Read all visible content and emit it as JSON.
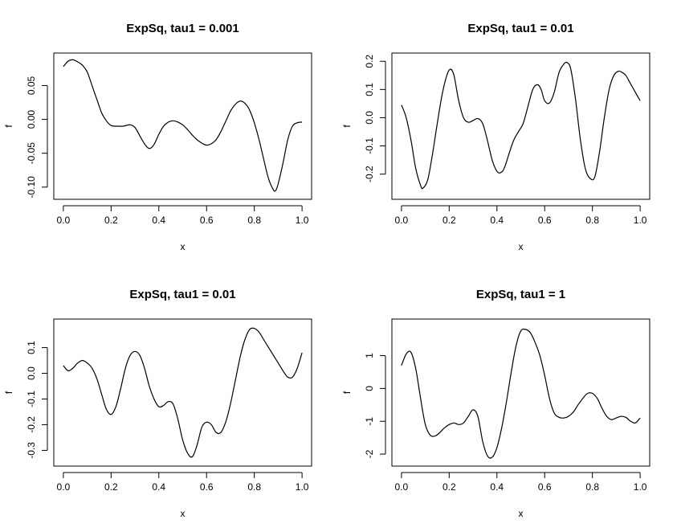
{
  "chart_data": [
    {
      "type": "line",
      "title": "ExpSq, tau1 = 0.001",
      "xlabel": "x",
      "ylabel": "f",
      "xlim": [
        0,
        1
      ],
      "ylim": [
        -0.11,
        0.09
      ],
      "xticks": [
        0,
        0.2,
        0.4,
        0.6,
        0.8,
        1
      ],
      "xtick_labels": [
        "0.0",
        "0.2",
        "0.4",
        "0.6",
        "0.8",
        "1.0"
      ],
      "yticks": [
        -0.1,
        -0.05,
        0,
        0.05
      ],
      "ytick_labels": [
        "-0.10",
        "-0.05",
        "0.00",
        "0.05"
      ],
      "series": [
        {
          "x": [
            0,
            0.02,
            0.04,
            0.06,
            0.08,
            0.1,
            0.12,
            0.14,
            0.16,
            0.18,
            0.2,
            0.22,
            0.25,
            0.28,
            0.3,
            0.32,
            0.34,
            0.36,
            0.38,
            0.4,
            0.42,
            0.44,
            0.46,
            0.48,
            0.5,
            0.52,
            0.54,
            0.56,
            0.58,
            0.6,
            0.62,
            0.64,
            0.66,
            0.68,
            0.7,
            0.72,
            0.74,
            0.76,
            0.78,
            0.8,
            0.82,
            0.84,
            0.86,
            0.88,
            0.89,
            0.9,
            0.92,
            0.94,
            0.96,
            0.98,
            1.0
          ],
          "y": [
            0.078,
            0.086,
            0.088,
            0.085,
            0.08,
            0.07,
            0.05,
            0.03,
            0.01,
            -0.002,
            -0.009,
            -0.01,
            -0.01,
            -0.008,
            -0.012,
            -0.024,
            -0.036,
            -0.043,
            -0.037,
            -0.022,
            -0.01,
            -0.004,
            -0.002,
            -0.004,
            -0.008,
            -0.015,
            -0.023,
            -0.03,
            -0.035,
            -0.038,
            -0.036,
            -0.03,
            -0.018,
            -0.003,
            0.012,
            0.022,
            0.027,
            0.024,
            0.014,
            -0.005,
            -0.03,
            -0.06,
            -0.088,
            -0.104,
            -0.105,
            -0.095,
            -0.065,
            -0.03,
            -0.01,
            -0.005,
            -0.004
          ]
        }
      ]
    },
    {
      "type": "line",
      "title": "ExpSq, tau1 = 0.01",
      "xlabel": "x",
      "ylabel": "f",
      "xlim": [
        0,
        1
      ],
      "ylim": [
        -0.27,
        0.21
      ],
      "xticks": [
        0,
        0.2,
        0.4,
        0.6,
        0.8,
        1
      ],
      "xtick_labels": [
        "0.0",
        "0.2",
        "0.4",
        "0.6",
        "0.8",
        "1.0"
      ],
      "yticks": [
        -0.2,
        -0.1,
        0,
        0.1,
        0.2
      ],
      "ytick_labels": [
        "-0.2",
        "-0.1",
        "0.0",
        "0.1",
        "0.2"
      ],
      "series": [
        {
          "x": [
            0,
            0.02,
            0.04,
            0.06,
            0.08,
            0.09,
            0.11,
            0.13,
            0.15,
            0.17,
            0.19,
            0.205,
            0.22,
            0.24,
            0.26,
            0.28,
            0.3,
            0.32,
            0.34,
            0.36,
            0.38,
            0.4,
            0.415,
            0.43,
            0.45,
            0.47,
            0.49,
            0.51,
            0.53,
            0.55,
            0.57,
            0.585,
            0.6,
            0.62,
            0.64,
            0.66,
            0.68,
            0.695,
            0.71,
            0.73,
            0.75,
            0.77,
            0.79,
            0.81,
            0.83,
            0.85,
            0.87,
            0.89,
            0.91,
            0.925,
            0.94,
            0.96,
            0.98,
            1.0
          ],
          "y": [
            0.045,
            0.0,
            -0.08,
            -0.18,
            -0.24,
            -0.25,
            -0.22,
            -0.13,
            -0.02,
            0.08,
            0.15,
            0.172,
            0.15,
            0.06,
            0.0,
            -0.016,
            -0.01,
            -0.003,
            -0.02,
            -0.08,
            -0.15,
            -0.19,
            -0.195,
            -0.18,
            -0.13,
            -0.08,
            -0.05,
            -0.02,
            0.04,
            0.1,
            0.117,
            0.1,
            0.06,
            0.052,
            0.09,
            0.16,
            0.19,
            0.195,
            0.17,
            0.06,
            -0.08,
            -0.18,
            -0.215,
            -0.21,
            -0.12,
            0.0,
            0.1,
            0.15,
            0.165,
            0.16,
            0.15,
            0.12,
            0.09,
            0.06
          ]
        }
      ]
    },
    {
      "type": "line",
      "title": "ExpSq, tau1 = 0.01",
      "xlabel": "x",
      "ylabel": "f",
      "xlim": [
        0,
        1
      ],
      "ylim": [
        -0.34,
        0.19
      ],
      "xticks": [
        0,
        0.2,
        0.4,
        0.6,
        0.8,
        1
      ],
      "xtick_labels": [
        "0.0",
        "0.2",
        "0.4",
        "0.6",
        "0.8",
        "1.0"
      ],
      "yticks": [
        -0.3,
        -0.2,
        -0.1,
        0,
        0.1
      ],
      "ytick_labels": [
        "-0.3",
        "-0.2",
        "-0.1",
        "0.0",
        "0.1"
      ],
      "series": [
        {
          "x": [
            0,
            0.02,
            0.04,
            0.06,
            0.08,
            0.1,
            0.12,
            0.14,
            0.16,
            0.18,
            0.2,
            0.22,
            0.24,
            0.26,
            0.28,
            0.3,
            0.32,
            0.34,
            0.36,
            0.38,
            0.4,
            0.42,
            0.44,
            0.46,
            0.48,
            0.5,
            0.52,
            0.54,
            0.56,
            0.58,
            0.6,
            0.62,
            0.64,
            0.66,
            0.68,
            0.7,
            0.72,
            0.74,
            0.76,
            0.78,
            0.8,
            0.82,
            0.84,
            0.86,
            0.88,
            0.9,
            0.92,
            0.94,
            0.96,
            0.98,
            1.0
          ],
          "y": [
            0.03,
            0.01,
            0.02,
            0.04,
            0.05,
            0.04,
            0.02,
            -0.02,
            -0.08,
            -0.14,
            -0.16,
            -0.13,
            -0.06,
            0.02,
            0.07,
            0.085,
            0.07,
            0.02,
            -0.05,
            -0.1,
            -0.13,
            -0.125,
            -0.11,
            -0.12,
            -0.18,
            -0.26,
            -0.31,
            -0.325,
            -0.28,
            -0.21,
            -0.19,
            -0.2,
            -0.23,
            -0.23,
            -0.19,
            -0.12,
            -0.03,
            0.06,
            0.13,
            0.17,
            0.175,
            0.16,
            0.13,
            0.1,
            0.07,
            0.04,
            0.01,
            -0.015,
            -0.015,
            0.02,
            0.08
          ]
        }
      ]
    },
    {
      "type": "line",
      "title": "ExpSq, tau1 = 1",
      "xlabel": "x",
      "ylabel": "f",
      "xlim": [
        0,
        1
      ],
      "ylim": [
        -2.2,
        1.95
      ],
      "xticks": [
        0,
        0.2,
        0.4,
        0.6,
        0.8,
        1
      ],
      "xtick_labels": [
        "0.0",
        "0.2",
        "0.4",
        "0.6",
        "0.8",
        "1.0"
      ],
      "yticks": [
        -2,
        -1,
        0,
        1
      ],
      "ytick_labels": [
        "-2",
        "-1",
        "0",
        "1"
      ],
      "series": [
        {
          "x": [
            0,
            0.02,
            0.04,
            0.06,
            0.08,
            0.1,
            0.12,
            0.14,
            0.16,
            0.18,
            0.2,
            0.22,
            0.24,
            0.26,
            0.28,
            0.3,
            0.32,
            0.34,
            0.36,
            0.38,
            0.4,
            0.42,
            0.44,
            0.46,
            0.48,
            0.5,
            0.52,
            0.54,
            0.56,
            0.58,
            0.6,
            0.62,
            0.64,
            0.66,
            0.68,
            0.7,
            0.72,
            0.74,
            0.76,
            0.78,
            0.8,
            0.82,
            0.84,
            0.86,
            0.88,
            0.9,
            0.92,
            0.94,
            0.96,
            0.98,
            1.0
          ],
          "y": [
            0.7,
            1.05,
            1.1,
            0.6,
            -0.3,
            -1.1,
            -1.42,
            -1.45,
            -1.35,
            -1.2,
            -1.1,
            -1.05,
            -1.1,
            -1.05,
            -0.85,
            -0.65,
            -0.85,
            -1.6,
            -2.05,
            -2.1,
            -1.8,
            -1.2,
            -0.4,
            0.5,
            1.3,
            1.75,
            1.8,
            1.7,
            1.4,
            1.0,
            0.4,
            -0.3,
            -0.75,
            -0.88,
            -0.9,
            -0.85,
            -0.72,
            -0.5,
            -0.3,
            -0.15,
            -0.15,
            -0.3,
            -0.6,
            -0.85,
            -0.95,
            -0.9,
            -0.85,
            -0.88,
            -1.0,
            -1.05,
            -0.9
          ]
        }
      ]
    }
  ]
}
